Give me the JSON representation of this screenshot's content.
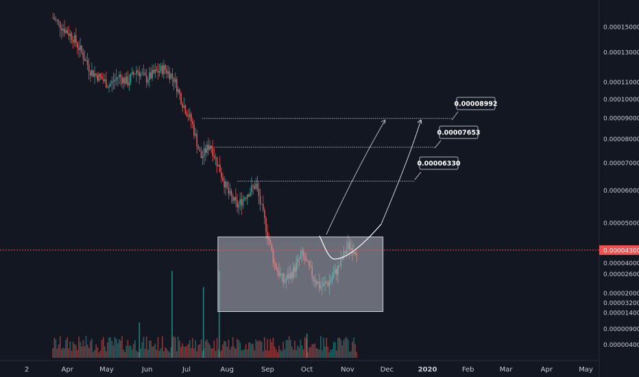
{
  "chart_data": {
    "type": "candlestick",
    "y_scale": "log",
    "colors": {
      "background": "#131722",
      "up": "#26a69a",
      "down": "#ef5350",
      "current_line": "#ef5350",
      "range_box": "#9598a1",
      "annotation_line": "#b2b5be"
    },
    "price_axis_labels": [
      "0.00015000",
      "0.00013000",
      "0.00011000",
      "0.00010000",
      "0.00009000",
      "0.00008000",
      "0.00007000",
      "0.00006000",
      "0.00005000",
      "0.00004000",
      "0.00003200",
      "0.00002600",
      "0.00002000",
      "0.00001400",
      "0.00000900",
      "0.00000400"
    ],
    "price_axis_values": [
      0.00015,
      0.00013,
      0.00011,
      0.0001,
      9e-05,
      8e-05,
      7e-05,
      6e-05,
      5e-05,
      4e-05,
      3.2e-05
    ],
    "volume_axis_labels": [
      "0.00002600",
      "0.00002000",
      "0.00001400",
      "0.00000900",
      "0.00000400"
    ],
    "time_axis_labels": [
      "2",
      "Apr",
      "May",
      "Jun",
      "Jul",
      "Aug",
      "Sep",
      "Oct",
      "Nov",
      "Dec",
      "2020",
      "Feb",
      "Mar",
      "Apr",
      "May"
    ],
    "current_price": {
      "label": "0.00004300",
      "value": 4.3e-05
    },
    "targets": [
      {
        "label": "0.00008992",
        "value": 8.992e-05
      },
      {
        "label": "0.00007653",
        "value": 7.653e-05
      },
      {
        "label": "0.00006330",
        "value": 6.33e-05
      }
    ],
    "range_box": {
      "low": 3.05e-05,
      "high": 4.63e-05,
      "start": "Jul 25",
      "end": "Nov 28"
    },
    "price_path": [
      {
        "date": "Mar 21",
        "value": 0.000158
      },
      {
        "date": "Mar 28",
        "value": 0.00015
      },
      {
        "date": "Apr 5",
        "value": 0.000142
      },
      {
        "date": "Apr 12",
        "value": 0.00013
      },
      {
        "date": "Apr 19",
        "value": 0.000117
      },
      {
        "date": "Apr 26",
        "value": 0.000113
      },
      {
        "date": "May 3",
        "value": 0.000108
      },
      {
        "date": "May 10",
        "value": 0.000114
      },
      {
        "date": "May 17",
        "value": 0.00011
      },
      {
        "date": "May 24",
        "value": 0.000118
      },
      {
        "date": "May 31",
        "value": 0.000112
      },
      {
        "date": "Jun 7",
        "value": 0.000116
      },
      {
        "date": "Jun 14",
        "value": 0.000119
      },
      {
        "date": "Jun 21",
        "value": 0.000113
      },
      {
        "date": "Jun 28",
        "value": 9.8e-05
      },
      {
        "date": "Jul 5",
        "value": 8.8e-05
      },
      {
        "date": "Jul 12",
        "value": 7.2e-05
      },
      {
        "date": "Jul 19",
        "value": 7.8e-05
      },
      {
        "date": "Jul 26",
        "value": 6.8e-05
      },
      {
        "date": "Aug 2",
        "value": 5.9e-05
      },
      {
        "date": "Aug 9",
        "value": 5.5e-05
      },
      {
        "date": "Aug 16",
        "value": 5.9e-05
      },
      {
        "date": "Aug 23",
        "value": 6.2e-05
      },
      {
        "date": "Aug 30",
        "value": 5e-05
      },
      {
        "date": "Sep 6",
        "value": 4e-05
      },
      {
        "date": "Sep 13",
        "value": 3.6e-05
      },
      {
        "date": "Sep 20",
        "value": 3.8e-05
      },
      {
        "date": "Sep 27",
        "value": 4.2e-05
      },
      {
        "date": "Oct 4",
        "value": 3.8e-05
      },
      {
        "date": "Oct 11",
        "value": 3.5e-05
      },
      {
        "date": "Oct 18",
        "value": 3.6e-05
      },
      {
        "date": "Oct 25",
        "value": 3.9e-05
      },
      {
        "date": "Nov 1",
        "value": 4.4e-05
      },
      {
        "date": "Nov 8",
        "value": 4.3e-05
      }
    ],
    "volume_spikes": [
      {
        "date": "Jun 20",
        "value": 2.7e-05
      },
      {
        "date": "Jul 14",
        "value": 2.2e-05
      },
      {
        "date": "Jul 26",
        "value": 2.7e-05
      },
      {
        "date": "May 26",
        "value": 1.1e-05
      },
      {
        "date": "Oct 1",
        "value": 7.5e-06
      }
    ]
  }
}
